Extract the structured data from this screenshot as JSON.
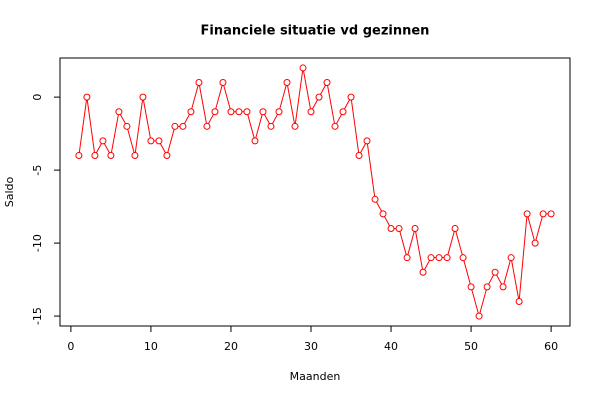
{
  "chart_data": {
    "type": "line",
    "title": "Financiele situatie vd gezinnen",
    "xlabel": "Maanden",
    "ylabel": "Saldo",
    "x": [
      1,
      2,
      3,
      4,
      5,
      6,
      7,
      8,
      9,
      10,
      11,
      12,
      13,
      14,
      15,
      16,
      17,
      18,
      19,
      20,
      21,
      22,
      23,
      24,
      25,
      26,
      27,
      28,
      29,
      30,
      31,
      32,
      33,
      34,
      35,
      36,
      37,
      38,
      39,
      40,
      41,
      42,
      43,
      44,
      45,
      46,
      47,
      48,
      49,
      50,
      51,
      52,
      53,
      54,
      55,
      56,
      57,
      58,
      59,
      60
    ],
    "series": [
      {
        "name": "Saldo",
        "color": "#ff0000",
        "values": [
          -4,
          0,
          -4,
          -3,
          -4,
          -1,
          -2,
          -4,
          0,
          -3,
          -3,
          -4,
          -2,
          -2,
          -1,
          1,
          -2,
          -1,
          1,
          -1,
          -1,
          -1,
          -3,
          -1,
          -2,
          -1,
          1,
          -2,
          2,
          -1,
          0,
          1,
          -2,
          -1,
          0,
          -4,
          -3,
          -7,
          -8,
          -9,
          -9,
          -11,
          -9,
          -12,
          -11,
          -11,
          -11,
          -9,
          -11,
          -13,
          -15,
          -13,
          -12,
          -13,
          -11,
          -14,
          -8,
          -10,
          -8,
          -8
        ]
      }
    ],
    "xlim": [
      -1.36,
      62.36
    ],
    "ylim": [
      -15.68,
      2.68
    ],
    "xticks": [
      0,
      10,
      20,
      30,
      40,
      50,
      60
    ],
    "yticks": [
      -15,
      -10,
      -5,
      0
    ]
  }
}
